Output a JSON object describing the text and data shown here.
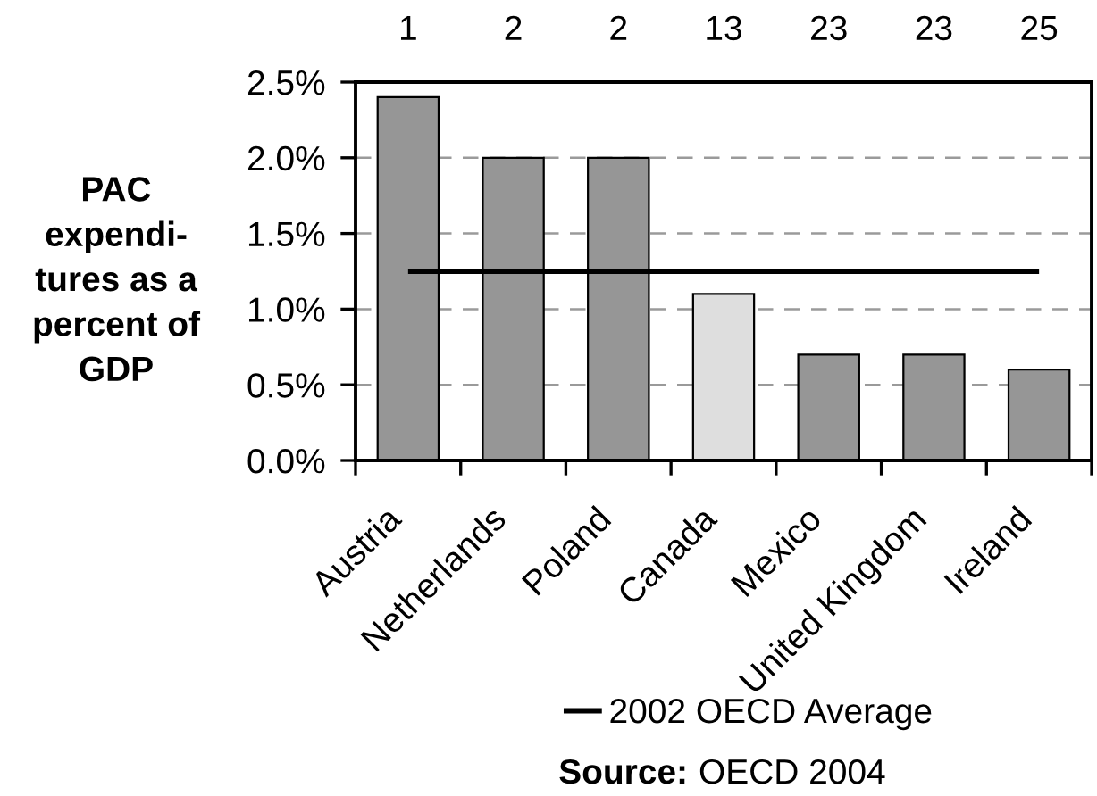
{
  "chart_data": {
    "type": "bar",
    "categories": [
      "Austria",
      "Netherlands",
      "Poland",
      "Canada",
      "Mexico",
      "United Kingdom",
      "Ireland"
    ],
    "series": [
      {
        "colors": [
          "#969696",
          "#969696",
          "#969696",
          "#dedede",
          "#969696",
          "#969696",
          "#969696"
        ],
        "values": [
          2.4,
          2.0,
          2.0,
          1.1,
          0.7,
          0.7,
          0.6
        ]
      },
      {
        "type": "line",
        "name": "2002 OECD Average",
        "color": "#000000",
        "values": [
          1.25,
          1.25,
          1.25,
          1.25,
          1.25,
          1.25,
          1.25
        ]
      }
    ],
    "ylabel": "PAC\nexpendi-\ntures as a\npercent of\nGDP",
    "ylim": [
      0,
      2.5
    ],
    "yticks": [
      {
        "value": 0,
        "label": "0.0%"
      },
      {
        "value": 0.5,
        "label": "0.5%"
      },
      {
        "value": 1.0,
        "label": "1.0%"
      },
      {
        "value": 1.5,
        "label": "1.5%"
      },
      {
        "value": 2.0,
        "label": "2.0%"
      },
      {
        "value": 2.5,
        "label": "2.5%"
      }
    ],
    "grid": "y",
    "legend": "bottom",
    "annotations": [
      "1",
      "2",
      "2",
      "13",
      "23",
      "23",
      "25",
      "Source: OECD 2004"
    ]
  }
}
